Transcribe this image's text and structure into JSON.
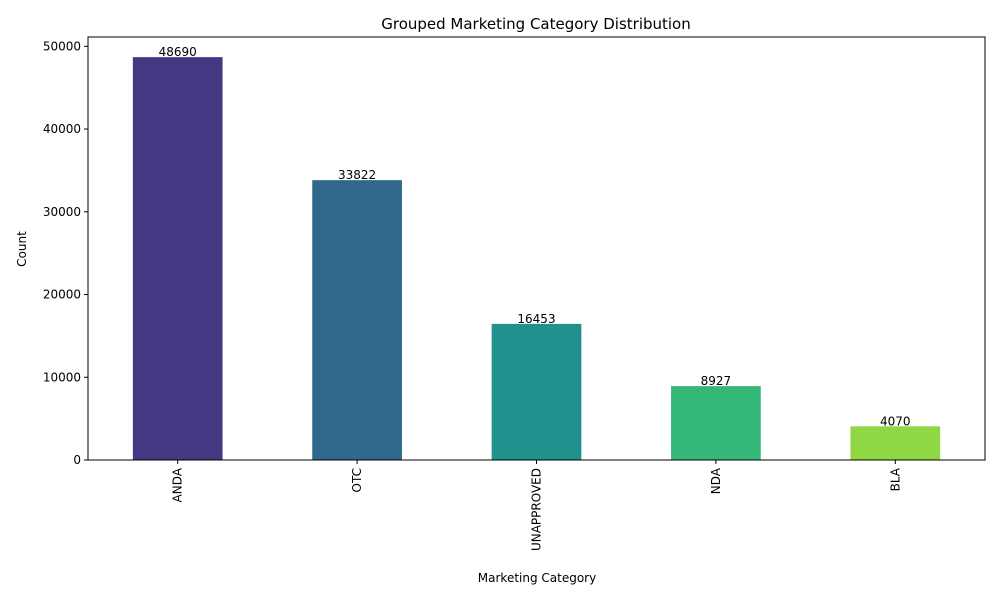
{
  "chart_data": {
    "type": "bar",
    "title": "Grouped Marketing Category Distribution",
    "xlabel": "Marketing Category",
    "ylabel": "Count",
    "categories": [
      "ANDA",
      "OTC",
      "UNAPPROVED",
      "NDA",
      "BLA"
    ],
    "values": [
      48690,
      33822,
      16453,
      8927,
      4070
    ],
    "data_labels": [
      "48690",
      "33822",
      "16453",
      "8927",
      "4070"
    ],
    "colors": [
      "#433983",
      "#30688d",
      "#20918c",
      "#35b778",
      "#8fd744"
    ],
    "ylim": [
      0,
      51124.5
    ],
    "yticks": [
      0,
      10000,
      20000,
      30000,
      40000,
      50000
    ],
    "ytick_labels": [
      "0",
      "10000",
      "20000",
      "30000",
      "40000",
      "50000"
    ],
    "xtick_rotation": "vertical",
    "grid": false,
    "legend": "none"
  }
}
